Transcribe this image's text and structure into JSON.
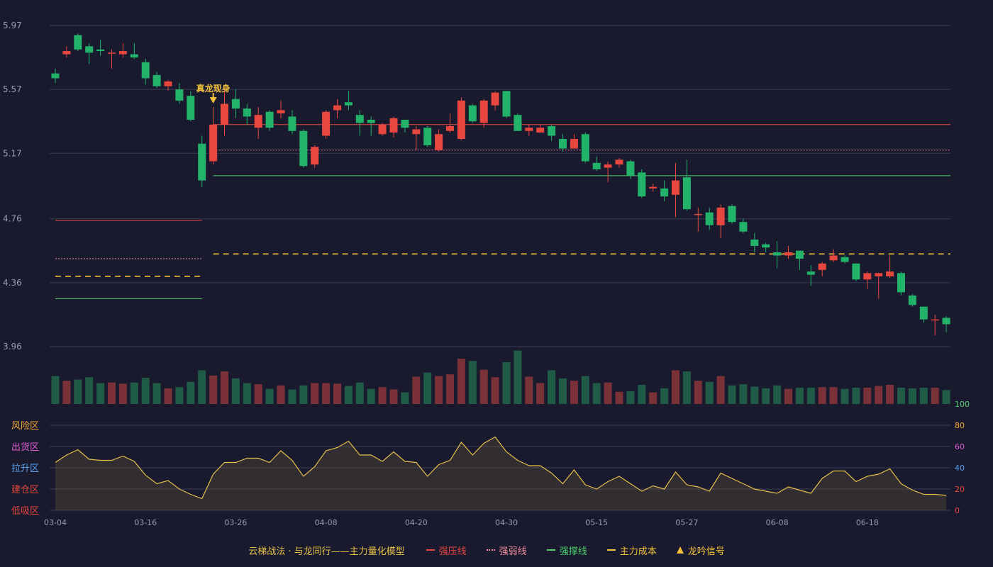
{
  "colors": {
    "up": "#e8473f",
    "down": "#22b26a",
    "vol_up": "#7a3138",
    "vol_down": "#1f5b47",
    "grid": "#3a3c55",
    "axis_text": "#9a9cab",
    "resist": "#e8473f",
    "weak": "#f08a9c",
    "support": "#4fd16c",
    "cost": "#f3c13a",
    "osc_line": "#e6c04a"
  },
  "chart_data": [
    {
      "type": "candlestick",
      "y_ticks": [
        "5.97",
        "5.57",
        "5.17",
        "4.76",
        "4.36",
        "3.96"
      ],
      "ylim": [
        3.96,
        5.97
      ],
      "x_ticks": [
        {
          "label": "03-04",
          "index": 0
        },
        {
          "label": "03-16",
          "index": 8
        },
        {
          "label": "03-26",
          "index": 16
        },
        {
          "label": "04-08",
          "index": 24
        },
        {
          "label": "04-20",
          "index": 32
        },
        {
          "label": "04-30",
          "index": 40
        },
        {
          "label": "05-15",
          "index": 48
        },
        {
          "label": "05-27",
          "index": 56
        },
        {
          "label": "06-08",
          "index": 64
        },
        {
          "label": "06-18",
          "index": 72
        }
      ],
      "ohlc": [
        [
          5.67,
          5.64,
          5.7,
          5.61
        ],
        [
          5.79,
          5.81,
          5.84,
          5.77
        ],
        [
          5.91,
          5.82,
          5.92,
          5.81
        ],
        [
          5.84,
          5.8,
          5.86,
          5.73
        ],
        [
          5.82,
          5.81,
          5.88,
          5.78
        ],
        [
          5.8,
          5.8,
          5.82,
          5.7
        ],
        [
          5.79,
          5.81,
          5.86,
          5.77
        ],
        [
          5.79,
          5.77,
          5.86,
          5.76
        ],
        [
          5.74,
          5.64,
          5.76,
          5.6
        ],
        [
          5.66,
          5.59,
          5.68,
          5.58
        ],
        [
          5.59,
          5.62,
          5.63,
          5.56
        ],
        [
          5.57,
          5.5,
          5.61,
          5.48
        ],
        [
          5.53,
          5.38,
          5.56,
          5.37
        ],
        [
          5.23,
          5.0,
          5.28,
          4.96
        ],
        [
          5.12,
          5.35,
          5.46,
          5.1
        ],
        [
          5.35,
          5.48,
          5.57,
          5.28
        ],
        [
          5.51,
          5.45,
          5.57,
          5.39
        ],
        [
          5.45,
          5.4,
          5.48,
          5.35
        ],
        [
          5.33,
          5.41,
          5.46,
          5.26
        ],
        [
          5.43,
          5.33,
          5.44,
          5.31
        ],
        [
          5.42,
          5.44,
          5.5,
          5.39
        ],
        [
          5.4,
          5.31,
          5.44,
          5.29
        ],
        [
          5.31,
          5.09,
          5.32,
          5.08
        ],
        [
          5.1,
          5.21,
          5.22,
          5.08
        ],
        [
          5.28,
          5.43,
          5.44,
          5.26
        ],
        [
          5.44,
          5.47,
          5.51,
          5.39
        ],
        [
          5.49,
          5.47,
          5.56,
          5.44
        ],
        [
          5.41,
          5.36,
          5.44,
          5.28
        ],
        [
          5.38,
          5.36,
          5.4,
          5.28
        ],
        [
          5.29,
          5.35,
          5.36,
          5.28
        ],
        [
          5.3,
          5.39,
          5.4,
          5.27
        ],
        [
          5.38,
          5.33,
          5.38,
          5.3
        ],
        [
          5.29,
          5.32,
          5.34,
          5.19
        ],
        [
          5.33,
          5.22,
          5.34,
          5.21
        ],
        [
          5.19,
          5.29,
          5.32,
          5.18
        ],
        [
          5.31,
          5.34,
          5.42,
          5.3
        ],
        [
          5.26,
          5.5,
          5.52,
          5.25
        ],
        [
          5.47,
          5.37,
          5.48,
          5.36
        ],
        [
          5.36,
          5.5,
          5.51,
          5.33
        ],
        [
          5.47,
          5.55,
          5.56,
          5.44
        ],
        [
          5.56,
          5.4,
          5.56,
          5.39
        ],
        [
          5.41,
          5.31,
          5.42,
          5.31
        ],
        [
          5.31,
          5.33,
          5.35,
          5.28
        ],
        [
          5.3,
          5.33,
          5.35,
          5.3
        ],
        [
          5.34,
          5.28,
          5.35,
          5.25
        ],
        [
          5.26,
          5.2,
          5.29,
          5.18
        ],
        [
          5.2,
          5.26,
          5.29,
          5.2
        ],
        [
          5.29,
          5.12,
          5.3,
          5.11
        ],
        [
          5.11,
          5.07,
          5.15,
          5.06
        ],
        [
          5.08,
          5.1,
          5.12,
          4.99
        ],
        [
          5.1,
          5.13,
          5.14,
          5.08
        ],
        [
          5.12,
          5.03,
          5.13,
          5.01
        ],
        [
          5.05,
          4.9,
          5.07,
          4.89
        ],
        [
          4.95,
          4.96,
          4.98,
          4.93
        ],
        [
          4.95,
          4.9,
          5.0,
          4.87
        ],
        [
          4.91,
          5.0,
          5.11,
          4.77
        ],
        [
          5.02,
          4.82,
          5.13,
          4.81
        ],
        [
          4.79,
          4.79,
          4.83,
          4.68
        ],
        [
          4.8,
          4.72,
          4.83,
          4.69
        ],
        [
          4.72,
          4.83,
          4.85,
          4.64
        ],
        [
          4.84,
          4.74,
          4.85,
          4.73
        ],
        [
          4.74,
          4.68,
          4.76,
          4.67
        ],
        [
          4.63,
          4.59,
          4.67,
          4.55
        ],
        [
          4.6,
          4.58,
          4.61,
          4.55
        ],
        [
          4.55,
          4.53,
          4.62,
          4.45
        ],
        [
          4.53,
          4.55,
          4.59,
          4.51
        ],
        [
          4.56,
          4.51,
          4.56,
          4.44
        ],
        [
          4.43,
          4.41,
          4.47,
          4.34
        ],
        [
          4.44,
          4.48,
          4.49,
          4.4
        ],
        [
          4.5,
          4.53,
          4.57,
          4.49
        ],
        [
          4.52,
          4.49,
          4.53,
          4.48
        ],
        [
          4.48,
          4.38,
          4.48,
          4.37
        ],
        [
          4.38,
          4.42,
          4.43,
          4.32
        ],
        [
          4.4,
          4.42,
          4.42,
          4.26
        ],
        [
          4.4,
          4.43,
          4.53,
          4.39
        ],
        [
          4.42,
          4.3,
          4.43,
          4.28
        ],
        [
          4.28,
          4.22,
          4.29,
          4.21
        ],
        [
          4.21,
          4.13,
          4.21,
          4.11
        ],
        [
          4.13,
          4.13,
          4.16,
          4.03
        ],
        [
          4.14,
          4.1,
          4.15,
          4.05
        ]
      ],
      "lines": [
        {
          "kind": "resist",
          "style": "solid",
          "from": 0,
          "to": 13,
          "value": 4.75
        },
        {
          "kind": "weak",
          "style": "dotted",
          "from": 0,
          "to": 13,
          "value": 4.51
        },
        {
          "kind": "cost",
          "style": "dashed",
          "from": 0,
          "to": 13,
          "value": 4.4
        },
        {
          "kind": "support",
          "style": "solid",
          "from": 0,
          "to": 13,
          "value": 4.26
        },
        {
          "kind": "resist",
          "style": "solid",
          "from": 14,
          "to": 80,
          "value": 5.35
        },
        {
          "kind": "weak",
          "style": "dotted",
          "from": 14,
          "to": 80,
          "value": 5.19
        },
        {
          "kind": "support",
          "style": "solid",
          "from": 14,
          "to": 80,
          "value": 5.03
        },
        {
          "kind": "cost",
          "style": "dashed",
          "from": 14,
          "to": 80,
          "value": 4.54
        }
      ],
      "annotations": [
        {
          "text": "真龙现身",
          "index": 14
        }
      ]
    },
    {
      "type": "bar",
      "series": "volume",
      "values": [
        48,
        40,
        42,
        46,
        36,
        37,
        35,
        37,
        45,
        36,
        27,
        29,
        38,
        58,
        49,
        56,
        44,
        36,
        34,
        26,
        32,
        25,
        32,
        36,
        36,
        35,
        31,
        37,
        26,
        29,
        25,
        20,
        47,
        54,
        48,
        51,
        78,
        74,
        59,
        46,
        72,
        92,
        47,
        36,
        58,
        44,
        40,
        48,
        36,
        37,
        21,
        22,
        33,
        20,
        27,
        58,
        56,
        40,
        38,
        48,
        32,
        34,
        30,
        27,
        32,
        26,
        28,
        28,
        29,
        29,
        26,
        28,
        28,
        31,
        33,
        28,
        27,
        28,
        28,
        24
      ]
    },
    {
      "type": "area",
      "series": "主力量化模型",
      "y_ticks": [
        "100",
        "80",
        "60",
        "40",
        "20",
        "0"
      ],
      "ylim": [
        0,
        100
      ],
      "zones": [
        "风险区",
        "出货区",
        "拉升区",
        "建仓区",
        "低吸区"
      ],
      "values": [
        45,
        52,
        57,
        48,
        47,
        47,
        51,
        46,
        33,
        25,
        28,
        20,
        15,
        11,
        34,
        45,
        45,
        49,
        49,
        45,
        56,
        47,
        32,
        41,
        56,
        59,
        65,
        52,
        52,
        46,
        55,
        46,
        45,
        32,
        43,
        47,
        64,
        52,
        63,
        69,
        55,
        47,
        42,
        42,
        35,
        25,
        38,
        24,
        20,
        27,
        32,
        25,
        18,
        23,
        20,
        36,
        24,
        22,
        18,
        35,
        30,
        25,
        20,
        18,
        16,
        22,
        19,
        16,
        30,
        37,
        37,
        27,
        32,
        34,
        39,
        25,
        19,
        15,
        15,
        14
      ]
    }
  ],
  "legend": {
    "title": "云梯战法 · 与龙同行——主力量化模型",
    "items": [
      {
        "label": "强压线",
        "kind": "resist"
      },
      {
        "label": "强弱线",
        "kind": "weak"
      },
      {
        "label": "强撑线",
        "kind": "support"
      },
      {
        "label": "主力成本",
        "kind": "cost"
      },
      {
        "label": "龙吟信号",
        "kind": "signal"
      }
    ]
  }
}
